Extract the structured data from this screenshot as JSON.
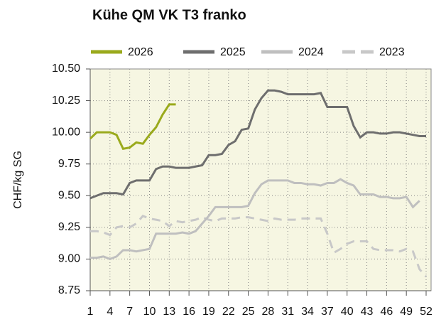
{
  "chart_data": {
    "type": "line",
    "title": "Kühe QM VK T3 franko",
    "y_label": "CHF/kg SG",
    "x": [
      1,
      2,
      3,
      4,
      5,
      6,
      7,
      8,
      9,
      10,
      11,
      12,
      13,
      14,
      15,
      16,
      17,
      18,
      19,
      20,
      21,
      22,
      23,
      24,
      25,
      26,
      27,
      28,
      29,
      30,
      31,
      32,
      33,
      34,
      35,
      36,
      37,
      38,
      39,
      40,
      41,
      42,
      43,
      44,
      45,
      46,
      47,
      48,
      49,
      50,
      51,
      52
    ],
    "xlim": [
      1,
      52
    ],
    "xticks": [
      1,
      4,
      7,
      10,
      13,
      16,
      19,
      22,
      25,
      28,
      31,
      34,
      37,
      40,
      43,
      46,
      49,
      52
    ],
    "ylim": [
      8.75,
      10.5
    ],
    "yticks": [
      8.75,
      {
        "value": 9,
        "label": "9.00"
      },
      9.25,
      {
        "value": 9.5,
        "label": "9.50"
      },
      9.75,
      {
        "value": 10,
        "label": "10.00"
      },
      10.25,
      {
        "value": 10.5,
        "label": "10.50"
      }
    ],
    "grid": true,
    "background": "#f6f6e2",
    "series": [
      {
        "name": "2026",
        "color": "#9aaa1c",
        "dash": false,
        "values": [
          9.95,
          10.0,
          10.0,
          10.0,
          9.98,
          9.87,
          9.88,
          9.92,
          9.91,
          9.98,
          10.04,
          10.14,
          10.22,
          10.22,
          null,
          null,
          null,
          null,
          null,
          null,
          null,
          null,
          null,
          null,
          null,
          null,
          null,
          null,
          null,
          null,
          null,
          null,
          null,
          null,
          null,
          null,
          null,
          null,
          null,
          null,
          null,
          null,
          null,
          null,
          null,
          null,
          null,
          null,
          null,
          null,
          null,
          null
        ]
      },
      {
        "name": "2025",
        "color": "#6e6e6e",
        "dash": false,
        "values": [
          9.48,
          9.5,
          9.52,
          9.52,
          9.52,
          9.51,
          9.6,
          9.62,
          9.62,
          9.62,
          9.71,
          9.73,
          9.73,
          9.72,
          9.72,
          9.72,
          9.73,
          9.74,
          9.82,
          9.82,
          9.83,
          9.9,
          9.93,
          10.02,
          10.03,
          10.18,
          10.27,
          10.33,
          10.33,
          10.32,
          10.3,
          10.3,
          10.3,
          10.3,
          10.3,
          10.31,
          10.2,
          10.2,
          10.2,
          10.2,
          10.05,
          9.96,
          10.0,
          10.0,
          9.99,
          9.99,
          10.0,
          10.0,
          9.99,
          9.98,
          9.97,
          9.97
        ]
      },
      {
        "name": "2024",
        "color": "#bfbfbf",
        "dash": false,
        "values": [
          9.01,
          9.01,
          9.02,
          9.0,
          9.02,
          9.07,
          9.07,
          9.06,
          9.07,
          9.08,
          9.2,
          9.2,
          9.2,
          9.2,
          9.21,
          9.2,
          9.22,
          9.28,
          9.34,
          9.41,
          9.41,
          9.41,
          9.41,
          9.41,
          9.42,
          9.52,
          9.59,
          9.62,
          9.62,
          9.62,
          9.62,
          9.6,
          9.6,
          9.59,
          9.59,
          9.58,
          9.6,
          9.6,
          9.63,
          9.6,
          9.58,
          9.51,
          9.51,
          9.51,
          9.49,
          9.49,
          9.48,
          9.48,
          9.49,
          9.41,
          9.46,
          null
        ]
      },
      {
        "name": "2023",
        "color": "#c8c8c8",
        "dash": true,
        "values": [
          9.22,
          9.22,
          9.21,
          9.19,
          9.25,
          9.26,
          9.25,
          9.28,
          9.34,
          9.32,
          9.31,
          9.3,
          9.26,
          9.3,
          9.29,
          9.3,
          9.31,
          9.33,
          9.31,
          9.3,
          9.32,
          9.32,
          9.32,
          9.33,
          9.33,
          9.32,
          9.31,
          9.3,
          9.32,
          9.31,
          9.31,
          9.31,
          9.32,
          9.32,
          9.32,
          9.32,
          9.2,
          9.05,
          9.08,
          9.12,
          9.14,
          9.14,
          9.14,
          9.08,
          9.07,
          9.07,
          9.07,
          9.06,
          9.08,
          9.06,
          8.92,
          8.86
        ]
      }
    ]
  }
}
